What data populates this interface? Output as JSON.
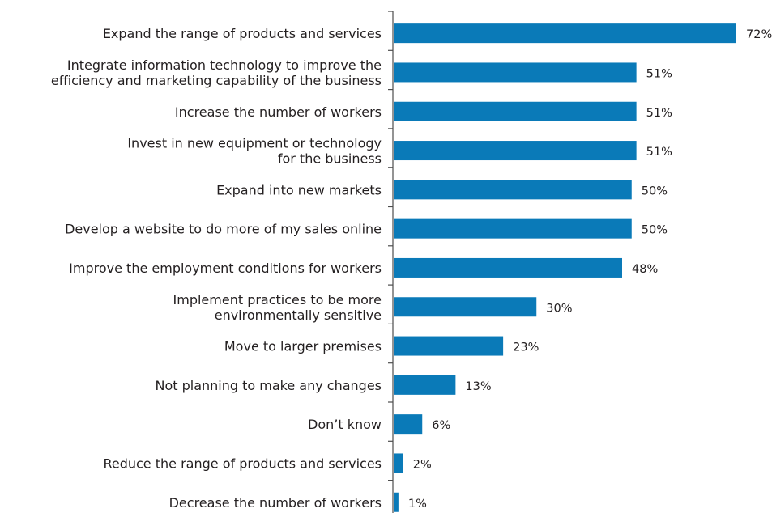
{
  "chart_data": {
    "type": "bar",
    "orientation": "horizontal",
    "categories": [
      [
        "Expand the range of products and services"
      ],
      [
        "Integrate information technology to improve the",
        "efficiency and marketing capability of the business"
      ],
      [
        "Increase the number of workers"
      ],
      [
        "Invest in new equipment or technology",
        "for the business"
      ],
      [
        "Expand into new markets"
      ],
      [
        "Develop a website to do more of my sales online"
      ],
      [
        "Improve the employment conditions for workers"
      ],
      [
        "Implement practices to be more",
        "environmentally sensitive"
      ],
      [
        "Move to larger premises"
      ],
      [
        "Not planning to make any changes"
      ],
      [
        "Don’t know"
      ],
      [
        "Reduce the range of products and services"
      ],
      [
        "Decrease the number of workers"
      ]
    ],
    "values": [
      72,
      51,
      51,
      51,
      50,
      50,
      48,
      30,
      23,
      13,
      6,
      2,
      1
    ],
    "value_labels": [
      "72%",
      "51%",
      "51%",
      "51%",
      "50%",
      "50%",
      "48%",
      "30%",
      "23%",
      "13%",
      "6%",
      "2%",
      "1%"
    ],
    "unit": "%",
    "xlim": [
      0,
      72
    ],
    "grid": false,
    "legend": "none",
    "bar_color": "#0a7ab8",
    "axis_color": "#4d4d4d",
    "text_color": "#231f20"
  }
}
